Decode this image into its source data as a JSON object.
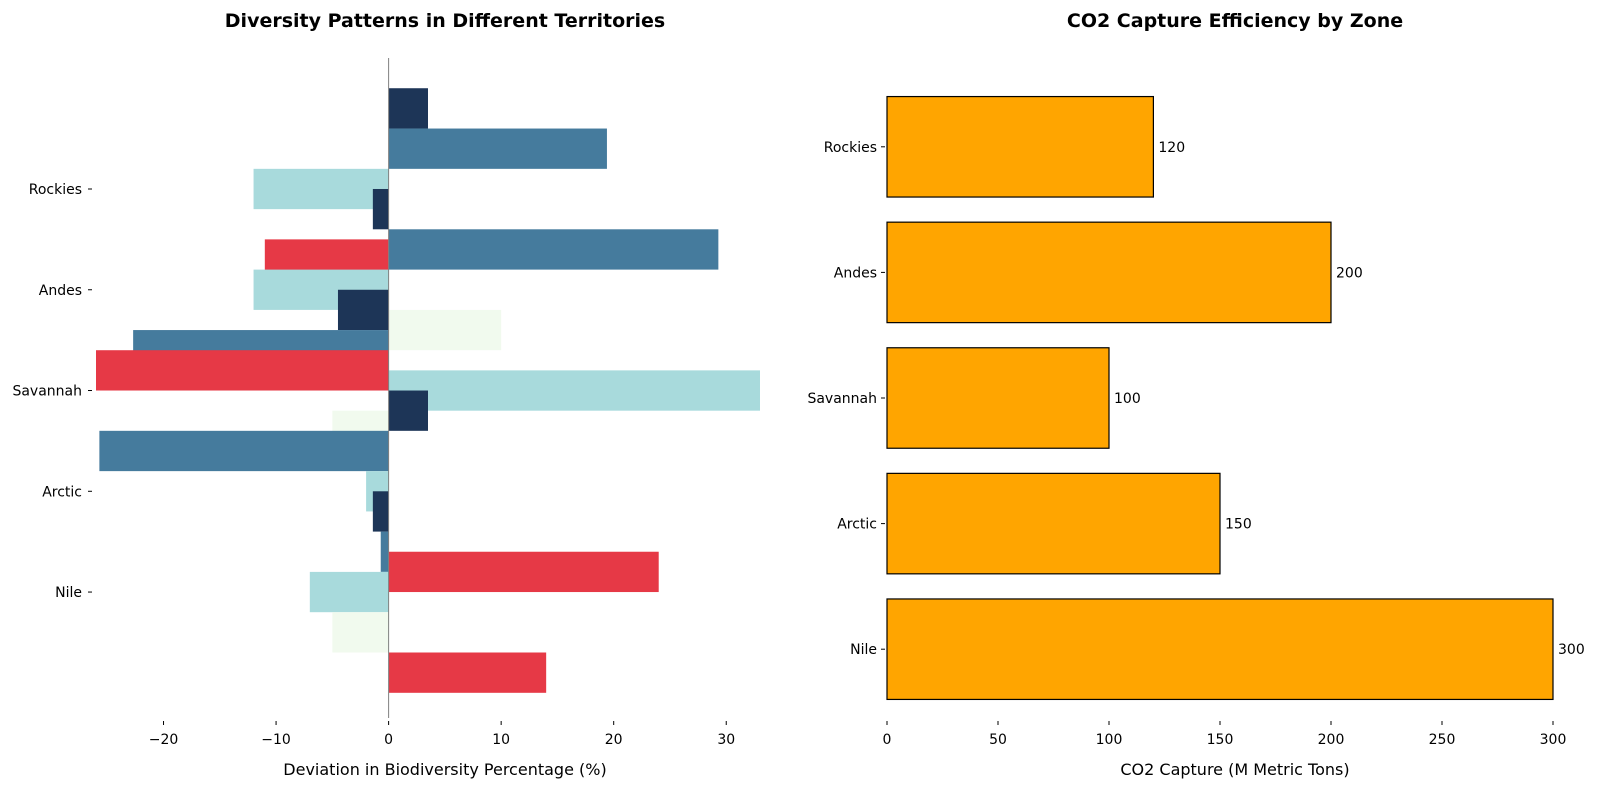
{
  "chart_data": [
    {
      "type": "bar",
      "orientation": "horizontal",
      "title": "Diversity Patterns in Different Territories",
      "xlabel": "Deviation in Biodiversity Percentage (%)",
      "ylabel": "",
      "xlim": [
        -26,
        33
      ],
      "xticks": [
        "−20",
        "−10",
        "0",
        "10",
        "20",
        "30"
      ],
      "xtick_values": [
        -20,
        -10,
        0,
        10,
        20,
        30
      ],
      "categories": [
        "Rockies",
        "Andes",
        "Savannah",
        "Arctic",
        "Nile"
      ],
      "category_positions": [
        6,
        5,
        4,
        3,
        2
      ],
      "ylim": [
        0.75,
        7.3
      ],
      "zero_line": true,
      "colors": [
        "#e63946",
        "#f1faee",
        "#a8dadc",
        "#457b9d",
        "#1d3557"
      ],
      "bars": [
        {
          "y": 6.8,
          "value": 3.5,
          "color": "#1d3557"
        },
        {
          "y": 6.4,
          "value": 19.4,
          "color": "#457b9d"
        },
        {
          "y": 6.0,
          "value": -12,
          "color": "#a8dadc"
        },
        {
          "y": 5.8,
          "value": -1.4,
          "color": "#1d3557"
        },
        {
          "y": 5.4,
          "value": 29.3,
          "color": "#457b9d"
        },
        {
          "y": 5.3,
          "value": -11,
          "color": "#e63946"
        },
        {
          "y": 5.0,
          "value": -12,
          "color": "#a8dadc"
        },
        {
          "y": 4.8,
          "value": -4.5,
          "color": "#1d3557"
        },
        {
          "y": 4.6,
          "value": 10,
          "color": "#f1faee"
        },
        {
          "y": 4.4,
          "value": -22.7,
          "color": "#457b9d"
        },
        {
          "y": 4.2,
          "value": -26,
          "color": "#e63946"
        },
        {
          "y": 4.0,
          "value": 33,
          "color": "#a8dadc"
        },
        {
          "y": 3.8,
          "value": 3.5,
          "color": "#1d3557"
        },
        {
          "y": 3.6,
          "value": -5,
          "color": "#f1faee"
        },
        {
          "y": 3.4,
          "value": -25.7,
          "color": "#457b9d"
        },
        {
          "y": 3.0,
          "value": -2,
          "color": "#a8dadc"
        },
        {
          "y": 2.8,
          "value": -1.4,
          "color": "#1d3557"
        },
        {
          "y": 2.4,
          "value": -0.7,
          "color": "#457b9d"
        },
        {
          "y": 2.2,
          "value": 24,
          "color": "#e63946"
        },
        {
          "y": 2.0,
          "value": -7,
          "color": "#a8dadc"
        },
        {
          "y": 1.6,
          "value": -5,
          "color": "#f1faee"
        },
        {
          "y": 1.2,
          "value": 14,
          "color": "#e63946"
        }
      ]
    },
    {
      "type": "bar",
      "orientation": "horizontal",
      "title": "CO2 Capture Efficiency by Zone",
      "xlabel": "CO2 Capture (M Metric Tons)",
      "ylabel": "",
      "xlim": [
        0,
        300
      ],
      "xticks": [
        "0",
        "50",
        "100",
        "150",
        "200",
        "250",
        "300"
      ],
      "xtick_values": [
        0,
        50,
        100,
        150,
        200,
        250,
        300
      ],
      "categories": [
        "Rockies",
        "Andes",
        "Savannah",
        "Arctic",
        "Nile"
      ],
      "values": [
        120,
        200,
        100,
        150,
        300
      ],
      "data_labels": [
        "120",
        "200",
        "100",
        "150",
        "300"
      ],
      "bar_color": "#ffa500",
      "edge_color": "#000000"
    }
  ]
}
